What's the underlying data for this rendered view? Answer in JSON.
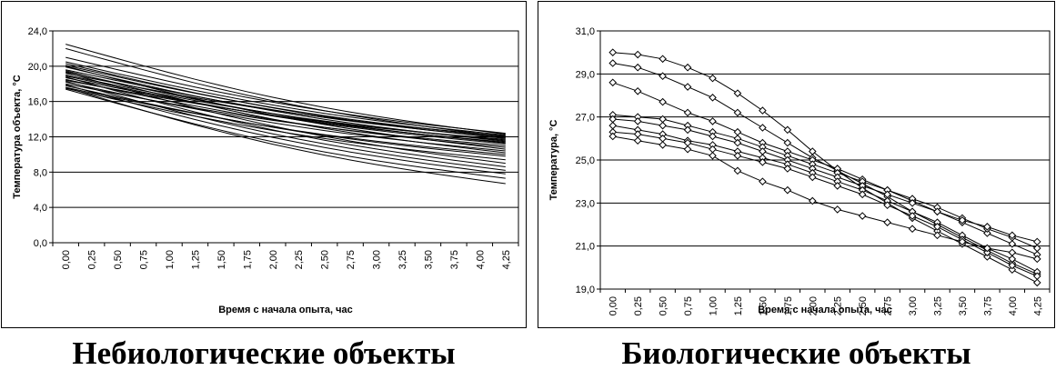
{
  "chart_data": [
    {
      "type": "line",
      "caption": "Небиологические объекты",
      "xlabel": "Время с начала опыта, час",
      "ylabel": "Температура объекта, °C",
      "x": [
        "0,00",
        "0,25",
        "0,50",
        "0,75",
        "1,00",
        "1,25",
        "1,50",
        "1,75",
        "2,00",
        "2,25",
        "2,50",
        "2,75",
        "3,00",
        "3,25",
        "3,50",
        "3,75",
        "4,00",
        "4,25"
      ],
      "y_ticks": [
        "0,0",
        "4,0",
        "8,0",
        "12,0",
        "16,0",
        "20,0",
        "24,0"
      ],
      "ylim": [
        0,
        24
      ],
      "grid": true,
      "markers": false,
      "line_color": "#000000",
      "series": [
        {
          "start": 22.5,
          "end": 12.3
        },
        {
          "start": 22.0,
          "end": 12.0
        },
        {
          "start": 21.0,
          "end": 12.4
        },
        {
          "start": 20.5,
          "end": 12.2
        },
        {
          "start": 20.3,
          "end": 11.8
        },
        {
          "start": 20.1,
          "end": 12.0
        },
        {
          "start": 19.9,
          "end": 11.5
        },
        {
          "start": 19.6,
          "end": 11.9
        },
        {
          "start": 19.4,
          "end": 11.3
        },
        {
          "start": 19.2,
          "end": 12.1
        },
        {
          "start": 19.0,
          "end": 11.6
        },
        {
          "start": 18.9,
          "end": 11.2
        },
        {
          "start": 18.7,
          "end": 11.4
        },
        {
          "start": 18.5,
          "end": 10.8
        },
        {
          "start": 18.4,
          "end": 11.7
        },
        {
          "start": 18.2,
          "end": 10.4
        },
        {
          "start": 18.0,
          "end": 11.0
        },
        {
          "start": 17.8,
          "end": 9.8
        },
        {
          "start": 17.6,
          "end": 10.0
        },
        {
          "start": 17.5,
          "end": 9.4
        },
        {
          "start": 19.3,
          "end": 9.0
        },
        {
          "start": 18.8,
          "end": 8.6
        },
        {
          "start": 18.3,
          "end": 8.2
        },
        {
          "start": 17.9,
          "end": 7.8
        },
        {
          "start": 17.4,
          "end": 7.3
        },
        {
          "start": 17.6,
          "end": 6.7
        },
        {
          "start": 20.0,
          "end": 10.6
        },
        {
          "start": 19.5,
          "end": 10.2
        }
      ]
    },
    {
      "type": "line",
      "caption": "Биологические объекты",
      "xlabel": "Время с начала опыта, час",
      "ylabel": "Температура, °C",
      "x": [
        "0,00",
        "0,25",
        "0,50",
        "0,75",
        "1,00",
        "1,25",
        "1,50",
        "1,75",
        "2,00",
        "2,25",
        "2,50",
        "2,75",
        "3,00",
        "3,25",
        "3,50",
        "3,75",
        "4,00",
        "4,25"
      ],
      "y_ticks": [
        "19,0",
        "21,0",
        "23,0",
        "25,0",
        "27,0",
        "29,0",
        "31,0"
      ],
      "ylim": [
        19,
        31
      ],
      "grid": true,
      "markers": "diamond",
      "line_color": "#000000",
      "series": [
        {
          "values": [
            30.0,
            29.9,
            29.7,
            29.3,
            28.8,
            28.1,
            27.3,
            26.4,
            25.4,
            24.5,
            23.7,
            23.0,
            22.3,
            21.7,
            21.1,
            20.5,
            19.9,
            19.3
          ]
        },
        {
          "values": [
            29.5,
            29.3,
            28.9,
            28.4,
            27.9,
            27.2,
            26.5,
            25.8,
            25.1,
            24.5,
            23.9,
            23.3,
            22.6,
            22.0,
            21.4,
            20.8,
            20.2,
            19.7
          ]
        },
        {
          "values": [
            28.6,
            28.2,
            27.7,
            27.2,
            26.8,
            26.3,
            25.8,
            25.4,
            25.0,
            24.6,
            24.1,
            23.6,
            23.1,
            22.6,
            22.1,
            21.6,
            21.1,
            20.6
          ]
        },
        {
          "values": [
            27.1,
            27.0,
            26.9,
            26.6,
            26.3,
            26.0,
            25.6,
            25.2,
            24.8,
            24.4,
            24.0,
            23.6,
            23.2,
            22.8,
            22.3,
            21.8,
            21.4,
            20.9
          ]
        },
        {
          "values": [
            26.9,
            26.8,
            26.6,
            26.4,
            26.1,
            25.8,
            25.4,
            25.0,
            24.6,
            24.2,
            23.8,
            23.4,
            23.0,
            22.6,
            22.2,
            21.9,
            21.5,
            21.2
          ]
        },
        {
          "values": [
            26.6,
            26.4,
            26.2,
            25.9,
            25.7,
            25.4,
            25.1,
            24.8,
            24.4,
            24.0,
            23.6,
            23.1,
            22.6,
            22.1,
            21.5,
            20.9,
            20.4,
            19.8
          ]
        },
        {
          "values": [
            26.3,
            26.2,
            26.0,
            25.8,
            25.5,
            25.2,
            24.9,
            24.6,
            24.2,
            23.8,
            23.4,
            22.9,
            22.4,
            21.9,
            21.3,
            20.7,
            20.1,
            19.6
          ]
        },
        {
          "values": [
            26.1,
            25.9,
            25.7,
            25.5,
            25.2,
            24.5,
            24.0,
            23.6,
            23.1,
            22.7,
            22.4,
            22.1,
            21.8,
            21.5,
            21.2,
            20.9,
            20.7,
            20.4
          ]
        }
      ]
    }
  ]
}
